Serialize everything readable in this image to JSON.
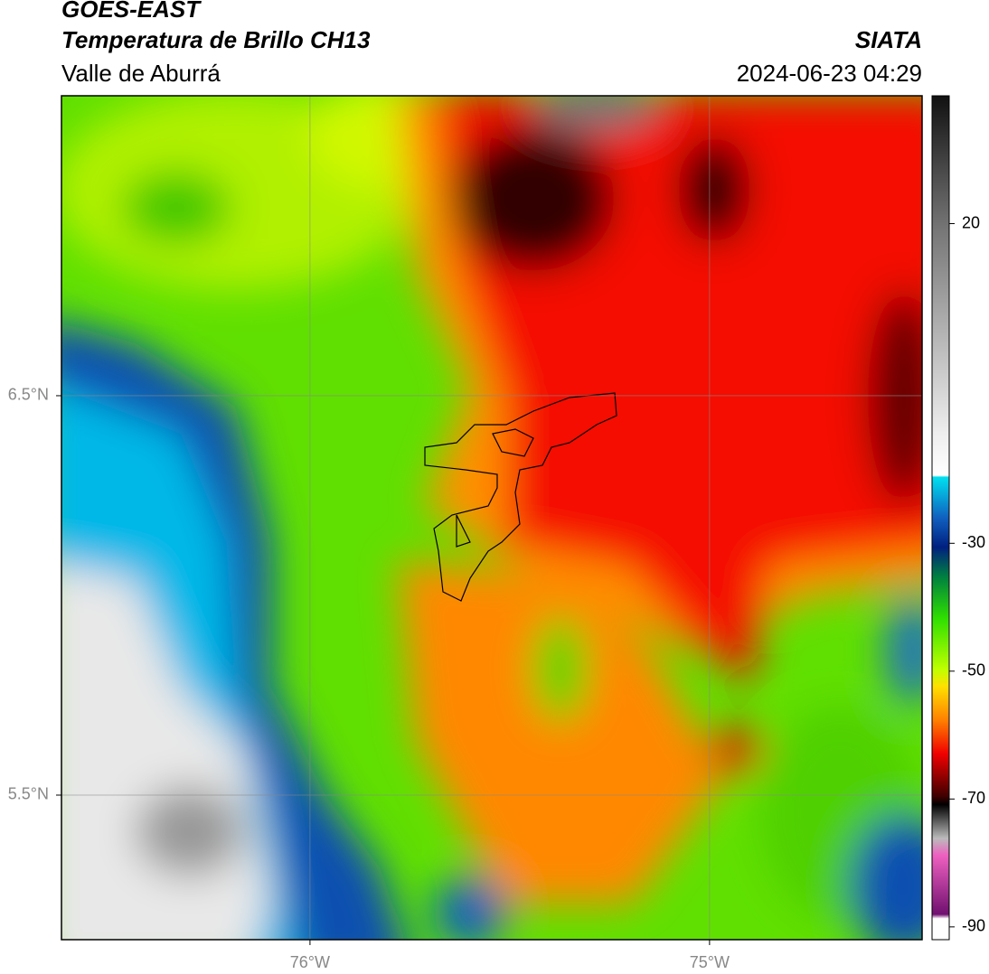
{
  "header": {
    "title": "GOES-EAST",
    "subtitle": "Temperatura de Brillo CH13",
    "region": "Valle de Aburrá",
    "source": "SIATA",
    "timestamp": "2024-06-23 04:29"
  },
  "map": {
    "lonlim": [
      -76.622,
      -74.468
    ],
    "latlim": [
      5.138,
      7.251
    ],
    "lon_lines": [
      {
        "value": -76,
        "label": "76°W"
      },
      {
        "value": -75,
        "label": "75°W"
      }
    ],
    "lat_lines": [
      {
        "value": 6.5,
        "label": "6.5°N"
      },
      {
        "value": 5.5,
        "label": "5.5°N"
      }
    ]
  },
  "colorbar": {
    "range": [
      -92,
      40
    ],
    "ticks": [
      20,
      -30,
      -50,
      -70,
      -90
    ]
  }
}
